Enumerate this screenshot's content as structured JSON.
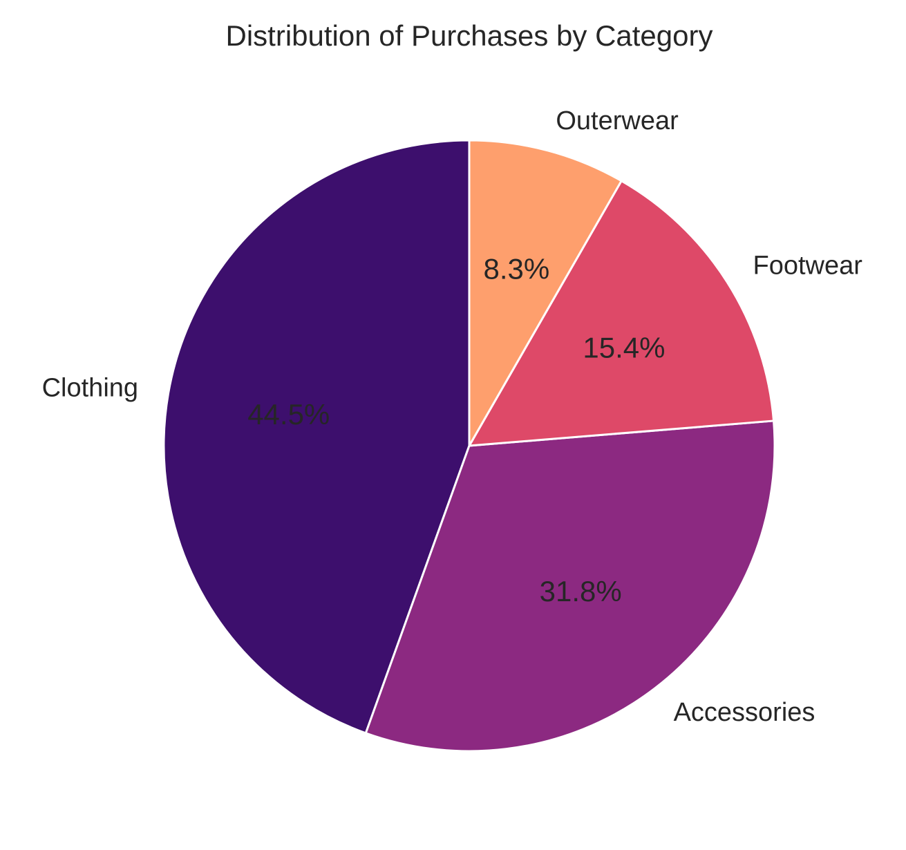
{
  "chart_data": {
    "type": "pie",
    "title": "Distribution of Purchases by Category",
    "start_angle_deg": 90,
    "direction": "counterclockwise",
    "slices": [
      {
        "label": "Clothing",
        "value": 44.5,
        "pct_label": "44.5%",
        "color": "#3d0f6d"
      },
      {
        "label": "Accessories",
        "value": 31.8,
        "pct_label": "31.8%",
        "color": "#8c2981"
      },
      {
        "label": "Footwear",
        "value": 15.4,
        "pct_label": "15.4%",
        "color": "#de4968"
      },
      {
        "label": "Outerwear",
        "value": 8.3,
        "pct_label": "8.3%",
        "color": "#fe9f6d"
      }
    ],
    "wedge_edge_color": "#ffffff"
  }
}
